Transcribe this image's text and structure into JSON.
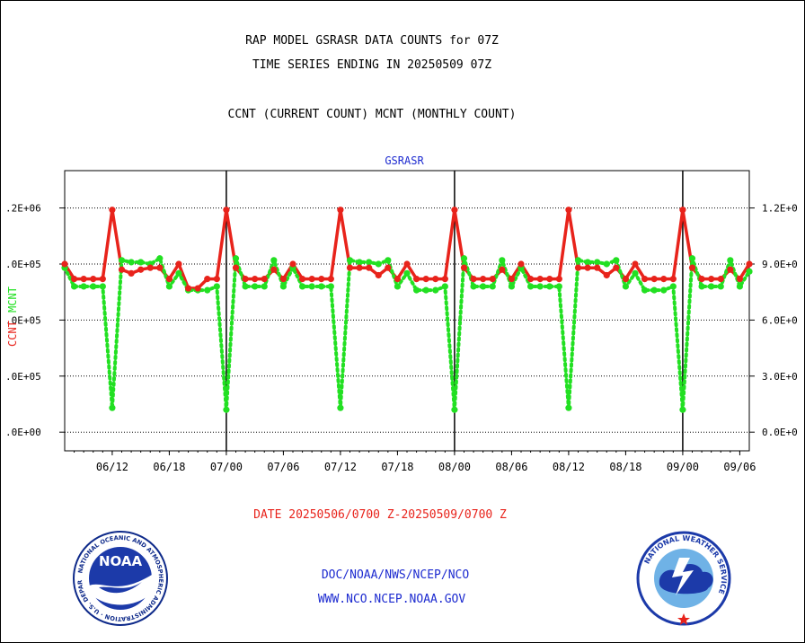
{
  "header": {
    "line1": "RAP MODEL GSRASR DATA COUNTS for 07Z",
    "line2": "TIME SERIES ENDING IN 20250509 07Z",
    "line3": "CCNT (CURRENT COUNT) MCNT (MONTHLY COUNT)"
  },
  "footer": {
    "date_range": "DATE 20250506/0700 Z-20250509/0700 Z",
    "org": "DOC/NOAA/NWS/NCEP/NCO",
    "url": "WWW.NCO.NCEP.NOAA.GOV"
  },
  "logos": {
    "left_text": "NATIONAL OCEANIC AND ATMOSPHERIC ADMINISTRATION · U.S. DEPARTMENT OF COMMERCE",
    "left_center": "NOAA",
    "right_text": "NATIONAL WEATHER SERVICE"
  },
  "colors": {
    "ccnt": "#e8231b",
    "mcnt": "#22e022",
    "title_blue": "#1d2bd0"
  },
  "chart_data": {
    "type": "line",
    "title": "GSRASR",
    "ylabel_left": "CCNT",
    "ylabel_right": "MCNT",
    "grid": true,
    "x_tick_labels": [
      "06/12",
      "06/18",
      "07/00",
      "07/06",
      "07/12",
      "07/18",
      "08/00",
      "08/06",
      "08/12",
      "08/18",
      "09/00",
      "09/06"
    ],
    "left_y_tick_labels": [
      ".0E+00",
      ".0E+05",
      ".0E+05",
      ".0E+05",
      ".2E+06"
    ],
    "right_y_tick_labels": [
      "0.0E+0",
      "3.0E+0",
      "6.0E+0",
      "9.0E+0",
      "1.2E+0"
    ],
    "ylim_right": [
      -100000,
      1400000
    ],
    "left_scale": "same as right",
    "x_start_hour": 7,
    "day_boundaries_hours": [
      24,
      48,
      72
    ],
    "series": [
      {
        "name": "CCNT",
        "color": "#e8231b",
        "style": "solid",
        "values": [
          900000,
          820000,
          820000,
          820000,
          820000,
          1190000,
          870000,
          850000,
          870000,
          880000,
          880000,
          820000,
          900000,
          770000,
          770000,
          820000,
          820000,
          1190000,
          880000,
          820000,
          820000,
          820000,
          870000,
          820000,
          900000,
          820000,
          820000,
          820000,
          820000,
          1190000,
          880000,
          880000,
          880000,
          840000,
          880000,
          820000,
          900000,
          820000,
          820000,
          820000,
          820000,
          1190000,
          880000,
          820000,
          820000,
          820000,
          870000,
          820000,
          900000,
          820000,
          820000,
          820000,
          820000,
          1190000,
          880000,
          880000,
          880000,
          840000,
          880000,
          820000,
          900000,
          820000,
          820000,
          820000,
          820000,
          1190000,
          880000,
          820000,
          820000,
          820000,
          870000,
          820000,
          900000
        ]
      },
      {
        "name": "MCNT",
        "color": "#22e022",
        "style": "dotted",
        "values": [
          880000,
          780000,
          780000,
          780000,
          780000,
          130000,
          920000,
          910000,
          910000,
          900000,
          930000,
          780000,
          850000,
          760000,
          760000,
          760000,
          780000,
          120000,
          930000,
          780000,
          780000,
          780000,
          920000,
          780000,
          880000,
          780000,
          780000,
          780000,
          780000,
          130000,
          920000,
          910000,
          910000,
          900000,
          920000,
          780000,
          850000,
          760000,
          760000,
          760000,
          780000,
          120000,
          930000,
          780000,
          780000,
          780000,
          920000,
          780000,
          880000,
          780000,
          780000,
          780000,
          780000,
          130000,
          920000,
          910000,
          910000,
          900000,
          920000,
          780000,
          850000,
          760000,
          760000,
          760000,
          780000,
          120000,
          930000,
          780000,
          780000,
          780000,
          920000,
          780000,
          860000
        ]
      }
    ]
  }
}
